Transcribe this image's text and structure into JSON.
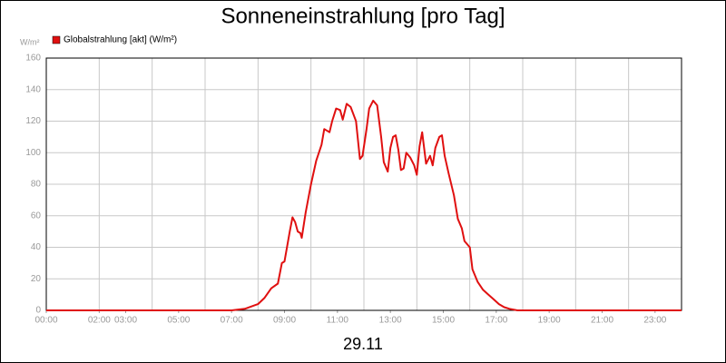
{
  "chart_data": {
    "type": "line",
    "title": "Sonneneinstrahlung [pro Tag]",
    "ylabel": "W/m²",
    "xlabel": "29.11",
    "xlim": [
      0,
      24
    ],
    "ylim": [
      0,
      160
    ],
    "yticks": [
      0,
      20,
      40,
      60,
      80,
      100,
      120,
      140,
      160
    ],
    "xticks": [
      {
        "value": 0,
        "label": "00:00"
      },
      {
        "value": 2,
        "label": "02:00"
      },
      {
        "value": 3,
        "label": "03:00"
      },
      {
        "value": 5,
        "label": "05:00"
      },
      {
        "value": 7,
        "label": "07:00"
      },
      {
        "value": 9,
        "label": "09:00"
      },
      {
        "value": 11,
        "label": "11:00"
      },
      {
        "value": 13,
        "label": "13:00"
      },
      {
        "value": 15,
        "label": "15:00"
      },
      {
        "value": 17,
        "label": "17:00"
      },
      {
        "value": 19,
        "label": "19:00"
      },
      {
        "value": 21,
        "label": "21:00"
      },
      {
        "value": 23,
        "label": "23:00"
      }
    ],
    "xgrid": [
      0,
      2,
      4,
      6,
      8,
      10,
      12,
      14,
      16,
      18,
      20,
      22,
      24
    ],
    "grid": true,
    "x": [
      0,
      7.0,
      7.5,
      8.0,
      8.25,
      8.5,
      8.75,
      8.9,
      9.0,
      9.2,
      9.3,
      9.4,
      9.5,
      9.6,
      9.65,
      9.8,
      10.0,
      10.2,
      10.4,
      10.5,
      10.7,
      10.8,
      10.95,
      11.1,
      11.2,
      11.35,
      11.5,
      11.7,
      11.85,
      11.95,
      12.1,
      12.2,
      12.35,
      12.5,
      12.65,
      12.75,
      12.9,
      13.0,
      13.1,
      13.2,
      13.3,
      13.4,
      13.5,
      13.6,
      13.75,
      13.9,
      14.0,
      14.1,
      14.2,
      14.35,
      14.5,
      14.6,
      14.7,
      14.85,
      14.95,
      15.05,
      15.2,
      15.4,
      15.55,
      15.7,
      15.8,
      16.0,
      16.1,
      16.3,
      16.5,
      16.7,
      16.9,
      17.1,
      17.3,
      17.5,
      17.8,
      24
    ],
    "series": [
      {
        "name": "Globalstrahlung [akt] (W/m²)",
        "color": "#e01010",
        "values": [
          0,
          0,
          1,
          4,
          8,
          14,
          17,
          30,
          31,
          50,
          59,
          56,
          50,
          49,
          46,
          62,
          80,
          95,
          105,
          115,
          113,
          120,
          128,
          127,
          121,
          131,
          129,
          120,
          96,
          98,
          115,
          128,
          133,
          130,
          110,
          94,
          88,
          103,
          110,
          111,
          102,
          89,
          90,
          100,
          97,
          92,
          86,
          104,
          113,
          93,
          98,
          92,
          103,
          110,
          111,
          98,
          87,
          73,
          58,
          52,
          44,
          40,
          26,
          18,
          13,
          10,
          7,
          4,
          2,
          1,
          0,
          0
        ]
      }
    ]
  }
}
